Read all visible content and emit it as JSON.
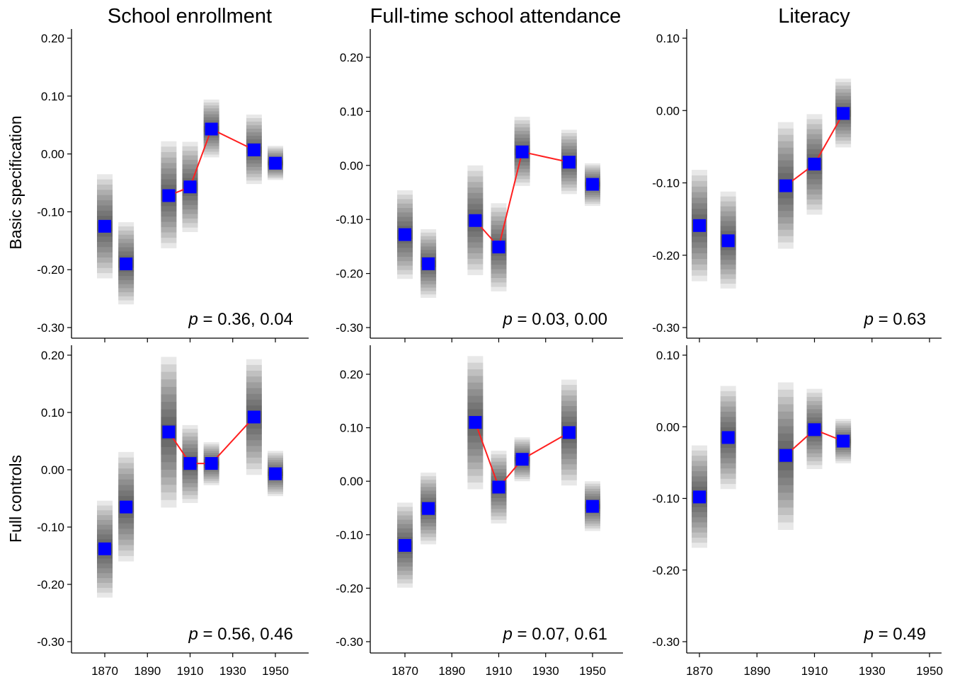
{
  "figure": {
    "column_titles": [
      "School enrollment",
      "Full-time school attendance",
      "Literacy"
    ],
    "row_labels": [
      "Basic specification",
      "Full controls"
    ]
  },
  "colors": {
    "point": "#0000ff",
    "line": "#ff2020",
    "band": "#000000",
    "axis": "#000000"
  },
  "chart_data": [
    {
      "type": "scatter",
      "row": "Basic specification",
      "column": "School enrollment",
      "title": "School enrollment",
      "ylabel": "Basic specification",
      "xlim": [
        1860,
        1955
      ],
      "x_ticks": [
        1870,
        1890,
        1910,
        1930,
        1950
      ],
      "ylim": [
        -0.305,
        0.205
      ],
      "y_ticks": [
        -0.3,
        -0.2,
        -0.1,
        0.0,
        0.1,
        0.2
      ],
      "points": [
        {
          "x": 1870,
          "y": -0.125,
          "ci": [
            -0.215,
            -0.035
          ]
        },
        {
          "x": 1880,
          "y": -0.19,
          "ci": [
            -0.26,
            -0.118
          ]
        },
        {
          "x": 1900,
          "y": -0.072,
          "ci": [
            -0.163,
            0.022
          ]
        },
        {
          "x": 1910,
          "y": -0.057,
          "ci": [
            -0.135,
            0.021
          ]
        },
        {
          "x": 1920,
          "y": 0.043,
          "ci": [
            -0.006,
            0.094
          ]
        },
        {
          "x": 1940,
          "y": 0.007,
          "ci": [
            -0.052,
            0.068
          ]
        },
        {
          "x": 1950,
          "y": -0.016,
          "ci": [
            -0.045,
            0.014
          ]
        }
      ],
      "red_line": {
        "x": [
          1900,
          1910,
          1920,
          1940
        ],
        "y": [
          -0.072,
          -0.057,
          0.043,
          0.007
        ]
      },
      "annotation": {
        "p": "p",
        "text": " = 0.36, 0.04"
      }
    },
    {
      "type": "scatter",
      "row": "Basic specification",
      "column": "Full-time school attendance",
      "title": "Full-time school attendance",
      "ylabel": "",
      "xlim": [
        1860,
        1955
      ],
      "x_ticks": [
        1870,
        1890,
        1910,
        1930,
        1950
      ],
      "ylim": [
        -0.305,
        0.24
      ],
      "y_ticks": [
        -0.3,
        -0.2,
        -0.1,
        0.0,
        0.1,
        0.2
      ],
      "points": [
        {
          "x": 1870,
          "y": -0.128,
          "ci": [
            -0.21,
            -0.046
          ]
        },
        {
          "x": 1880,
          "y": -0.182,
          "ci": [
            -0.245,
            -0.118
          ]
        },
        {
          "x": 1900,
          "y": -0.102,
          "ci": [
            -0.203,
            0.0
          ]
        },
        {
          "x": 1910,
          "y": -0.151,
          "ci": [
            -0.233,
            -0.07
          ]
        },
        {
          "x": 1920,
          "y": 0.025,
          "ci": [
            -0.038,
            0.09
          ]
        },
        {
          "x": 1940,
          "y": 0.006,
          "ci": [
            -0.053,
            0.066
          ]
        },
        {
          "x": 1950,
          "y": -0.035,
          "ci": [
            -0.075,
            0.004
          ]
        }
      ],
      "red_line": {
        "x": [
          1900,
          1910,
          1920,
          1940
        ],
        "y": [
          -0.102,
          -0.151,
          0.025,
          0.006
        ]
      },
      "annotation": {
        "p": "p",
        "text": " = 0.03, 0.00"
      }
    },
    {
      "type": "scatter",
      "row": "Basic specification",
      "column": "Literacy",
      "title": "Literacy",
      "ylabel": "",
      "xlim": [
        1860,
        1955
      ],
      "x_ticks": [
        1870,
        1890,
        1910,
        1930,
        1950
      ],
      "ylim": [
        -0.305,
        0.112
      ],
      "y_ticks": [
        -0.3,
        -0.2,
        -0.1,
        0.0,
        0.1
      ],
      "points": [
        {
          "x": 1870,
          "y": -0.159,
          "ci": [
            -0.236,
            -0.082
          ]
        },
        {
          "x": 1880,
          "y": -0.18,
          "ci": [
            -0.246,
            -0.112
          ]
        },
        {
          "x": 1900,
          "y": -0.104,
          "ci": [
            -0.191,
            -0.016
          ]
        },
        {
          "x": 1910,
          "y": -0.074,
          "ci": [
            -0.144,
            -0.005
          ]
        },
        {
          "x": 1920,
          "y": -0.004,
          "ci": [
            -0.051,
            0.044
          ]
        }
      ],
      "red_line": {
        "x": [
          1900,
          1910,
          1920
        ],
        "y": [
          -0.104,
          -0.074,
          -0.004
        ]
      },
      "annotation": {
        "p": "p",
        "text": " = 0.63"
      }
    },
    {
      "type": "scatter",
      "row": "Full controls",
      "column": "School enrollment",
      "title": "",
      "ylabel": "Full controls",
      "xlim": [
        1860,
        1955
      ],
      "x_ticks": [
        1870,
        1890,
        1910,
        1930,
        1950
      ],
      "ylim": [
        -0.305,
        0.205
      ],
      "y_ticks": [
        -0.3,
        -0.2,
        -0.1,
        0.0,
        0.1,
        0.2
      ],
      "points": [
        {
          "x": 1870,
          "y": -0.138,
          "ci": [
            -0.223,
            -0.054
          ]
        },
        {
          "x": 1880,
          "y": -0.065,
          "ci": [
            -0.16,
            0.031
          ]
        },
        {
          "x": 1900,
          "y": 0.066,
          "ci": [
            -0.066,
            0.197
          ]
        },
        {
          "x": 1910,
          "y": 0.011,
          "ci": [
            -0.058,
            0.078
          ]
        },
        {
          "x": 1920,
          "y": 0.011,
          "ci": [
            -0.027,
            0.048
          ]
        },
        {
          "x": 1940,
          "y": 0.092,
          "ci": [
            -0.009,
            0.193
          ]
        },
        {
          "x": 1950,
          "y": -0.007,
          "ci": [
            -0.046,
            0.033
          ]
        }
      ],
      "red_line": {
        "x": [
          1900,
          1910,
          1920,
          1940
        ],
        "y": [
          0.066,
          0.011,
          0.011,
          0.092
        ]
      },
      "annotation": {
        "p": "p",
        "text": " = 0.56, 0.46"
      }
    },
    {
      "type": "scatter",
      "row": "Full controls",
      "column": "Full-time school attendance",
      "title": "",
      "ylabel": "",
      "xlim": [
        1860,
        1955
      ],
      "x_ticks": [
        1870,
        1890,
        1910,
        1930,
        1950
      ],
      "ylim": [
        -0.305,
        0.255
      ],
      "y_ticks": [
        -0.3,
        -0.2,
        -0.1,
        0.0,
        0.1,
        0.2
      ],
      "points": [
        {
          "x": 1870,
          "y": -0.12,
          "ci": [
            -0.199,
            -0.04
          ]
        },
        {
          "x": 1880,
          "y": -0.051,
          "ci": [
            -0.118,
            0.016
          ]
        },
        {
          "x": 1900,
          "y": 0.11,
          "ci": [
            -0.015,
            0.234
          ]
        },
        {
          "x": 1910,
          "y": -0.011,
          "ci": [
            -0.079,
            0.057
          ]
        },
        {
          "x": 1920,
          "y": 0.041,
          "ci": [
            0.0,
            0.082
          ]
        },
        {
          "x": 1940,
          "y": 0.091,
          "ci": [
            -0.008,
            0.19
          ]
        },
        {
          "x": 1950,
          "y": -0.047,
          "ci": [
            -0.093,
            0.0
          ]
        }
      ],
      "red_line": {
        "x": [
          1900,
          1910,
          1920,
          1940
        ],
        "y": [
          0.11,
          -0.011,
          0.041,
          0.091
        ]
      },
      "annotation": {
        "p": "p",
        "text": " = 0.07, 0.61"
      }
    },
    {
      "type": "scatter",
      "row": "Full controls",
      "column": "Literacy",
      "title": "",
      "ylabel": "",
      "xlim": [
        1860,
        1955
      ],
      "x_ticks": [
        1870,
        1890,
        1910,
        1930,
        1950
      ],
      "ylim": [
        -0.305,
        0.112
      ],
      "y_ticks": [
        -0.3,
        -0.2,
        -0.1,
        0.0,
        0.1
      ],
      "points": [
        {
          "x": 1870,
          "y": -0.098,
          "ci": [
            -0.169,
            -0.026
          ]
        },
        {
          "x": 1880,
          "y": -0.015,
          "ci": [
            -0.087,
            0.057
          ]
        },
        {
          "x": 1900,
          "y": -0.04,
          "ci": [
            -0.144,
            0.062
          ]
        },
        {
          "x": 1910,
          "y": -0.004,
          "ci": [
            -0.059,
            0.053
          ]
        },
        {
          "x": 1920,
          "y": -0.02,
          "ci": [
            -0.051,
            0.011
          ]
        }
      ],
      "red_line": {
        "x": [
          1900,
          1910,
          1920
        ],
        "y": [
          -0.04,
          -0.004,
          -0.02
        ]
      },
      "annotation": {
        "p": "p",
        "text": " = 0.49"
      }
    }
  ]
}
